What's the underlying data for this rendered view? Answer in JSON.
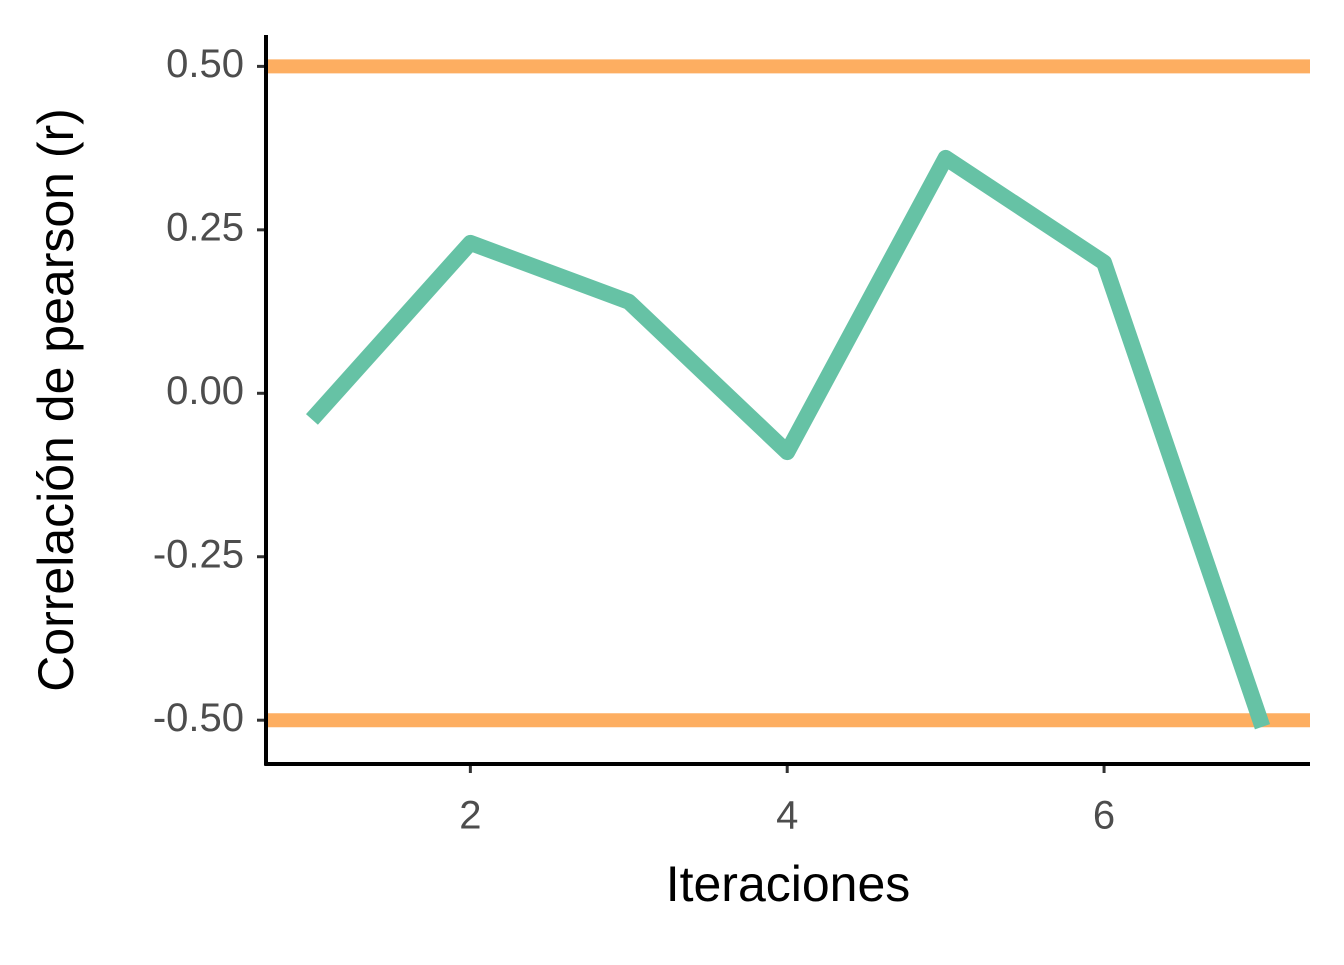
{
  "chart_data": {
    "type": "line",
    "x_label": "Iteraciones",
    "y_label": "Correlación de pearson (r)",
    "x": [
      1,
      2,
      3,
      4,
      5,
      6,
      7
    ],
    "series": [
      {
        "color": "#66c2a5",
        "values": [
          -0.04,
          0.23,
          0.14,
          -0.09,
          0.36,
          0.2,
          -0.51
        ]
      }
    ],
    "hlines": {
      "values": [
        0.5,
        -0.5
      ],
      "color": "#fdae61"
    },
    "xlim": [
      0.71,
      7.3
    ],
    "ylim": [
      -0.567,
      0.548
    ],
    "xticks": [
      2,
      4,
      6
    ],
    "yticks": [
      {
        "value": -0.5,
        "label": "-0.50"
      },
      {
        "value": -0.25,
        "label": "-0.25"
      },
      {
        "value": 0,
        "label": "0.00"
      },
      {
        "value": 0.25,
        "label": "0.25"
      },
      {
        "value": 0.5,
        "label": "0.50"
      }
    ],
    "grid": false
  }
}
